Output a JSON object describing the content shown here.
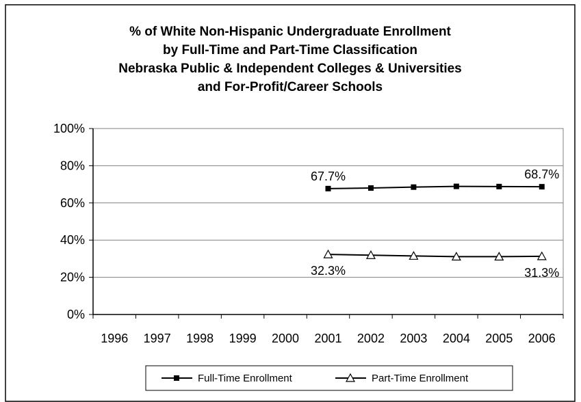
{
  "chart_data": {
    "type": "line",
    "title": [
      "% of White Non-Hispanic Undergraduate Enrollment",
      "by Full-Time and Part-Time Classification",
      "Nebraska Public & Independent Colleges & Universities",
      "and For-Profit/Career Schools"
    ],
    "xlabel": "",
    "ylabel": "",
    "categories": [
      "1996",
      "1997",
      "1998",
      "1999",
      "2000",
      "2001",
      "2002",
      "2003",
      "2004",
      "2005",
      "2006"
    ],
    "y_ticks": [
      "0%",
      "20%",
      "40%",
      "60%",
      "80%",
      "100%"
    ],
    "ylim": [
      0,
      100
    ],
    "grid": "horizontal",
    "legend_position": "bottom",
    "series": [
      {
        "name": "Full-Time Enrollment",
        "marker": "filled-square",
        "color": "#000000",
        "values": [
          null,
          null,
          null,
          null,
          null,
          67.7,
          68.0,
          68.5,
          68.9,
          68.8,
          68.7
        ]
      },
      {
        "name": "Part-Time Enrollment",
        "marker": "open-triangle",
        "color": "#000000",
        "values": [
          null,
          null,
          null,
          null,
          null,
          32.3,
          31.9,
          31.5,
          31.1,
          31.1,
          31.3
        ]
      }
    ],
    "data_labels": [
      {
        "series": 0,
        "category": "2001",
        "text": "67.7%",
        "placement": "above"
      },
      {
        "series": 0,
        "category": "2006",
        "text": "68.7%",
        "placement": "above"
      },
      {
        "series": 1,
        "category": "2001",
        "text": "32.3%",
        "placement": "below"
      },
      {
        "series": 1,
        "category": "2006",
        "text": "31.3%",
        "placement": "below"
      }
    ]
  }
}
